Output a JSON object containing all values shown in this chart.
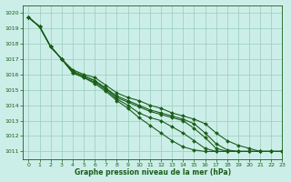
{
  "title": "Graphe pression niveau de la mer (hPa)",
  "background_color": "#cceee8",
  "grid_color": "#99ccbb",
  "line_color": "#1a5e1a",
  "text_color": "#1a5e1a",
  "xlim": [
    -0.5,
    23
  ],
  "ylim": [
    1010.5,
    1020.5
  ],
  "xticks": [
    0,
    1,
    2,
    3,
    4,
    5,
    6,
    7,
    8,
    9,
    10,
    11,
    12,
    13,
    14,
    15,
    16,
    17,
    18,
    19,
    20,
    21,
    22,
    23
  ],
  "yticks": [
    1011,
    1012,
    1013,
    1014,
    1015,
    1016,
    1017,
    1018,
    1019,
    1020
  ],
  "series": [
    [
      1019.7,
      1019.1,
      1017.8,
      1017.0,
      1016.3,
      1016.0,
      1015.8,
      1015.3,
      1014.8,
      1014.5,
      1014.3,
      1014.0,
      1013.8,
      1013.5,
      1013.3,
      1013.1,
      1012.8,
      1012.2,
      1011.7,
      1011.4,
      1011.2,
      1011.0,
      1011.0,
      1011.0
    ],
    [
      1019.7,
      1019.1,
      1017.8,
      1017.0,
      1016.2,
      1015.9,
      1015.6,
      1015.1,
      1014.6,
      1014.3,
      1014.0,
      1013.7,
      1013.5,
      1013.3,
      1013.1,
      1012.8,
      1012.2,
      1011.5,
      1011.1,
      1011.0,
      1011.0,
      1011.0,
      1011.0,
      1011.0
    ],
    [
      1019.7,
      1019.1,
      1017.8,
      1017.0,
      1016.2,
      1015.9,
      1015.6,
      1015.1,
      1014.5,
      1014.2,
      1013.9,
      1013.6,
      1013.4,
      1013.2,
      1013.0,
      1012.5,
      1011.9,
      1011.2,
      1011.0,
      1011.0,
      1011.0,
      1011.0,
      1011.0,
      1011.0
    ],
    [
      1019.7,
      1019.1,
      1017.8,
      1017.0,
      1016.1,
      1015.8,
      1015.5,
      1015.0,
      1014.4,
      1014.0,
      1013.5,
      1013.2,
      1013.0,
      1012.6,
      1012.2,
      1011.7,
      1011.2,
      1011.0,
      1011.0,
      1011.0,
      1011.0,
      1011.0,
      1011.0,
      1011.0
    ],
    [
      1019.7,
      1019.1,
      1017.8,
      1017.0,
      1016.1,
      1015.8,
      1015.4,
      1014.9,
      1014.3,
      1013.8,
      1013.2,
      1012.7,
      1012.2,
      1011.7,
      1011.3,
      1011.1,
      1011.0,
      1011.0,
      1011.0,
      1011.0,
      1011.0,
      1011.0,
      1011.0,
      1011.0
    ]
  ],
  "marker": "D",
  "markersize": 2.0,
  "linewidth": 0.8,
  "title_fontsize": 5.5,
  "tick_fontsize": 4.5
}
